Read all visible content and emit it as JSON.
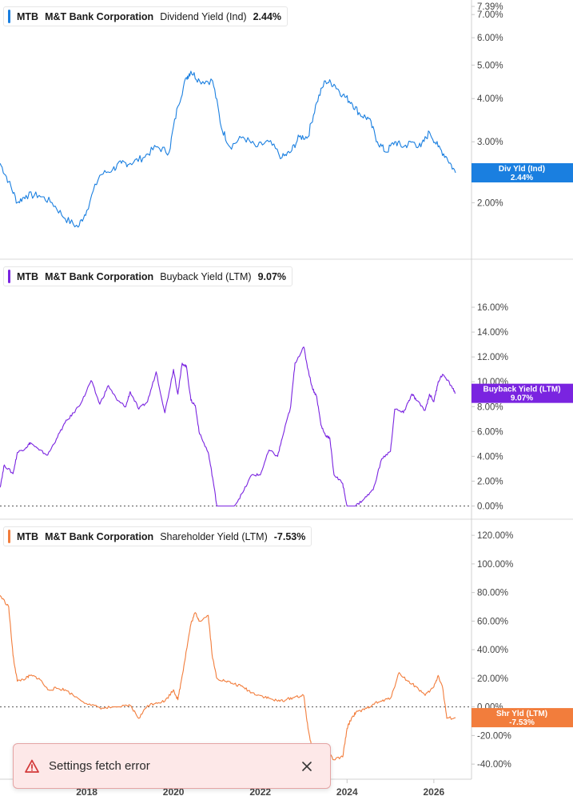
{
  "chart_data": [
    {
      "type": "line",
      "ticker": "MTB",
      "company": "M&T Bank Corporation",
      "metric": "Dividend Yield (Ind)",
      "current_value": "2.44%",
      "badge_label": "Div Yld (Ind)",
      "color": "#1a7fe0",
      "scale": "log",
      "ylim": [
        1.38,
        7.39
      ],
      "y_ticks": [
        "7.39%",
        "7.00%",
        "6.00%",
        "5.00%",
        "4.00%",
        "3.00%",
        "2.00%"
      ],
      "y_tick_values": [
        7.39,
        7.0,
        6.0,
        5.0,
        4.0,
        3.0,
        2.0
      ],
      "x": [
        2016.0,
        2016.2,
        2016.4,
        2016.6,
        2016.9,
        2017.2,
        2017.5,
        2017.8,
        2018.0,
        2018.3,
        2018.6,
        2018.8,
        2019.0,
        2019.3,
        2019.6,
        2019.9,
        2020.1,
        2020.3,
        2020.4,
        2020.6,
        2020.9,
        2021.1,
        2021.3,
        2021.6,
        2021.9,
        2022.2,
        2022.5,
        2022.7,
        2022.9,
        2023.1,
        2023.3,
        2023.5,
        2023.7,
        2023.9,
        2024.1,
        2024.3,
        2024.5,
        2024.7,
        2024.9,
        2025.1,
        2025.3,
        2025.5,
        2025.7,
        2025.9,
        2026.1,
        2026.3,
        2026.5
      ],
      "values": [
        2.6,
        2.3,
        2.0,
        2.1,
        2.1,
        2.0,
        1.8,
        1.7,
        1.9,
        2.4,
        2.5,
        2.6,
        2.6,
        2.7,
        2.9,
        2.8,
        3.8,
        4.6,
        4.8,
        4.5,
        4.5,
        3.3,
        2.9,
        3.1,
        2.9,
        3.0,
        2.7,
        2.8,
        3.1,
        3.1,
        3.9,
        4.5,
        4.4,
        4.1,
        3.9,
        3.6,
        3.5,
        3.0,
        2.8,
        3.0,
        2.9,
        3.0,
        2.9,
        3.2,
        2.9,
        2.7,
        2.44
      ]
    },
    {
      "type": "line",
      "ticker": "MTB",
      "company": "M&T Bank Corporation",
      "metric": "Buyback Yield (LTM)",
      "current_value": "9.07%",
      "badge_label": "Buyback Yield (LTM)",
      "color": "#7a24e0",
      "ylim": [
        -1.0,
        18.0
      ],
      "y_ticks": [
        "16.00%",
        "14.00%",
        "12.00%",
        "10.00%",
        "8.00%",
        "6.00%",
        "4.00%",
        "2.00%",
        "0.00%"
      ],
      "y_tick_values": [
        16,
        14,
        12,
        10,
        8,
        6,
        4,
        2,
        0
      ],
      "x": [
        2016.0,
        2016.1,
        2016.3,
        2016.4,
        2016.6,
        2016.7,
        2016.9,
        2017.1,
        2017.3,
        2017.5,
        2017.7,
        2017.9,
        2018.1,
        2018.3,
        2018.5,
        2018.7,
        2018.9,
        2019.0,
        2019.2,
        2019.4,
        2019.6,
        2019.8,
        2020.0,
        2020.1,
        2020.2,
        2020.3,
        2020.4,
        2020.5,
        2020.6,
        2020.8,
        2020.9,
        2021.0,
        2021.2,
        2021.3,
        2021.4,
        2021.6,
        2021.8,
        2022.0,
        2022.2,
        2022.4,
        2022.5,
        2022.7,
        2022.8,
        2023.0,
        2023.1,
        2023.2,
        2023.3,
        2023.4,
        2023.5,
        2023.6,
        2023.7,
        2023.9,
        2024.0,
        2024.1,
        2024.2,
        2024.4,
        2024.6,
        2024.8,
        2025.0,
        2025.1,
        2025.3,
        2025.4,
        2025.5,
        2025.6,
        2025.8,
        2025.9,
        2026.0,
        2026.1,
        2026.2,
        2026.4,
        2026.5
      ],
      "values": [
        1.5,
        3.3,
        2.6,
        4.3,
        4.7,
        5.1,
        4.5,
        4.1,
        5.4,
        6.7,
        7.5,
        8.5,
        10.1,
        8.2,
        9.7,
        8.5,
        8.0,
        9.2,
        7.8,
        8.4,
        10.8,
        7.5,
        11.0,
        9.0,
        11.5,
        11.2,
        8.5,
        8.1,
        5.8,
        4.3,
        2.3,
        0.0,
        0.0,
        0.0,
        0.0,
        1.1,
        2.5,
        2.5,
        4.5,
        4.0,
        5.4,
        8.0,
        11.5,
        12.8,
        11.0,
        9.5,
        8.8,
        6.5,
        5.7,
        5.5,
        2.5,
        1.8,
        0.0,
        0.0,
        0.0,
        0.6,
        1.3,
        3.8,
        4.4,
        7.8,
        7.5,
        8.3,
        9.0,
        8.5,
        7.7,
        9.0,
        8.4,
        10.0,
        10.6,
        9.7,
        9.07
      ]
    },
    {
      "type": "line",
      "ticker": "MTB",
      "company": "M&T Bank Corporation",
      "metric": "Shareholder Yield (LTM)",
      "current_value": "-7.53%",
      "badge_label": "Shr Yld (LTM)",
      "color": "#f27d3c",
      "ylim": [
        -50.0,
        124.0
      ],
      "y_ticks": [
        "120.00%",
        "100.00%",
        "80.00%",
        "60.00%",
        "40.00%",
        "20.00%",
        "0.00%",
        "-20.00%",
        "-40.00%"
      ],
      "y_tick_values": [
        120,
        100,
        80,
        60,
        40,
        20,
        0,
        -20,
        -40
      ],
      "x": [
        2016.0,
        2016.2,
        2016.3,
        2016.4,
        2016.6,
        2016.7,
        2016.9,
        2017.1,
        2017.3,
        2017.5,
        2017.8,
        2018.1,
        2018.4,
        2018.6,
        2018.8,
        2019.0,
        2019.2,
        2019.4,
        2019.6,
        2019.8,
        2020.0,
        2020.1,
        2020.2,
        2020.3,
        2020.4,
        2020.5,
        2020.6,
        2020.8,
        2020.9,
        2021.0,
        2021.2,
        2021.4,
        2021.6,
        2021.8,
        2022.0,
        2022.2,
        2022.4,
        2022.6,
        2022.8,
        2023.0,
        2023.1,
        2023.2,
        2023.3,
        2023.4,
        2023.5,
        2023.7,
        2023.9,
        2024.0,
        2024.1,
        2024.2,
        2024.4,
        2024.6,
        2024.8,
        2025.0,
        2025.2,
        2025.4,
        2025.6,
        2025.8,
        2026.0,
        2026.1,
        2026.2,
        2026.3,
        2026.5
      ],
      "values": [
        78,
        70,
        36,
        18,
        20,
        22,
        20,
        12,
        13,
        12,
        6,
        1,
        -1,
        0,
        0,
        1,
        -8,
        1,
        3,
        4,
        12,
        5,
        22,
        40,
        58,
        66,
        60,
        64,
        34,
        20,
        18,
        16,
        14,
        10,
        8,
        6,
        4,
        5,
        7,
        8,
        -15,
        -30,
        -35,
        -33,
        -30,
        -37,
        -35,
        -15,
        -8,
        -4,
        -2,
        2,
        4,
        6,
        24,
        18,
        14,
        8,
        14,
        22,
        14,
        -8,
        -7.53
      ]
    }
  ],
  "x_ticks": [
    "2018",
    "2020",
    "2022",
    "2024",
    "2026"
  ],
  "x_tick_values": [
    2018,
    2020,
    2022,
    2024,
    2026
  ],
  "x_range": [
    2016.0,
    2026.5
  ],
  "toast": {
    "message": "Settings fetch error"
  },
  "colors": {
    "toast_bg": "#fde8e8",
    "toast_border": "#e4a4a4",
    "warning": "#d33a3a"
  }
}
